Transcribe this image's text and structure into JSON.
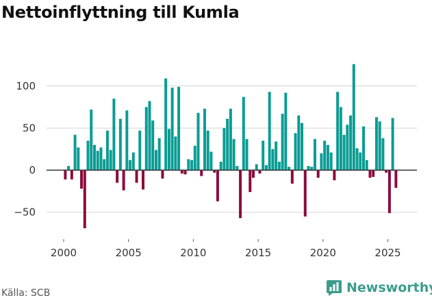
{
  "title": "Nettoinflyttning till Kumla",
  "source": "Källa: SCB",
  "brand": {
    "name": "Newsworthy",
    "icon": "newsworthy-logo-icon",
    "color": "#3c9c8c"
  },
  "colors": {
    "positive": "#0a9c93",
    "negative": "#8c0a3c",
    "grid": "#d4d4d4",
    "zero_line": "#333333"
  },
  "chart_data": {
    "type": "bar",
    "title": "Nettoinflyttning till Kumla",
    "xlabel": "",
    "ylabel": "",
    "frequency": "quarterly",
    "start": 2000.0,
    "step": 0.25,
    "xlim": [
      1999.2,
      2026.5
    ],
    "ylim": [
      -85,
      130
    ],
    "yticks": [
      -50,
      0,
      50,
      100
    ],
    "ytick_labels": [
      "−50",
      "0",
      "50",
      "100"
    ],
    "xticks": [
      2000,
      2005,
      2010,
      2015,
      2020,
      2025
    ],
    "xtick_labels": [
      "2000",
      "2005",
      "2010",
      "2015",
      "2020",
      "2025"
    ],
    "grid": true,
    "values": [
      -11,
      5,
      -11,
      42,
      27,
      -22,
      -69,
      35,
      72,
      30,
      23,
      27,
      13,
      47,
      24,
      85,
      -15,
      61,
      -24,
      71,
      12,
      21,
      -15,
      47,
      -23,
      75,
      82,
      59,
      24,
      38,
      -10,
      109,
      49,
      98,
      40,
      99,
      -4,
      -5,
      13,
      12,
      29,
      68,
      -7,
      73,
      47,
      22,
      -3,
      -37,
      10,
      50,
      61,
      73,
      37,
      5,
      -57,
      87,
      37,
      -26,
      -9,
      7,
      -4,
      35,
      6,
      93,
      25,
      34,
      10,
      67,
      92,
      4,
      -16,
      44,
      65,
      56,
      -55,
      5,
      4,
      37,
      -9,
      20,
      35,
      30,
      21,
      -12,
      93,
      75,
      42,
      54,
      65,
      126,
      26,
      21,
      52,
      12,
      -9,
      -8,
      63,
      58,
      38,
      -3,
      -51,
      62,
      -21
    ]
  }
}
